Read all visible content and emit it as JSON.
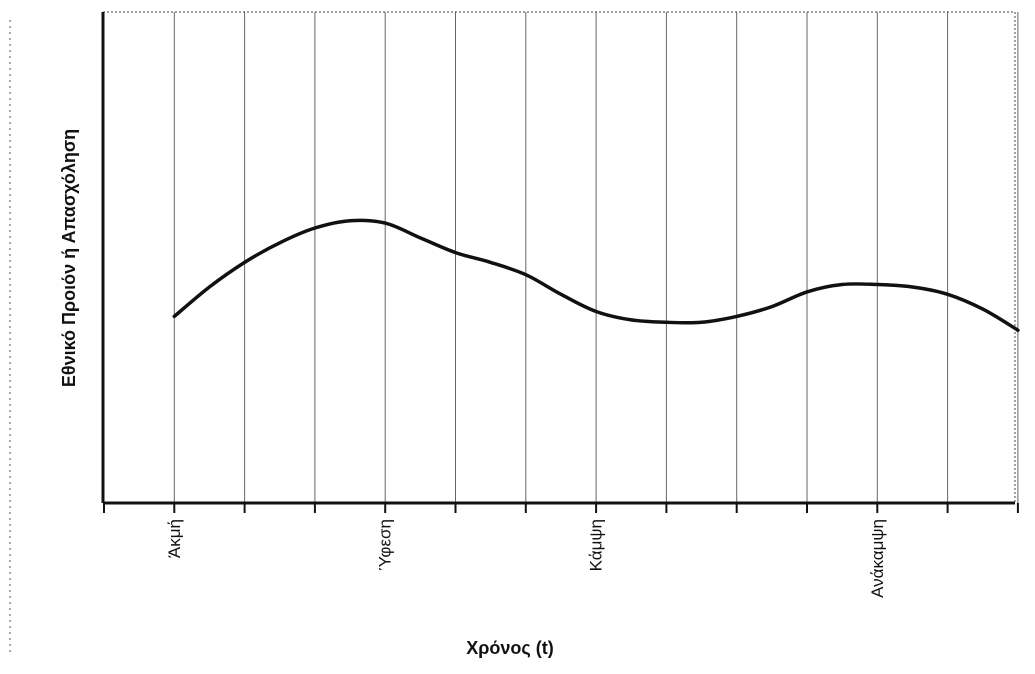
{
  "chart_data": {
    "type": "line",
    "title": "",
    "xlabel": "Χρόνος (t)",
    "ylabel": "Εθνικό Προιόν ή Απασχόληση",
    "grid": "vertical",
    "x_ticks": [
      {
        "x": 1,
        "label": "Άκμή"
      },
      {
        "x": 4,
        "label": "Ύφεση"
      },
      {
        "x": 7,
        "label": "Κάμψη"
      },
      {
        "x": 11,
        "label": "Ανάκαμψη"
      }
    ],
    "xlim": [
      0,
      13
    ],
    "ylim": [
      0,
      100
    ],
    "series": [
      {
        "color": "#111111",
        "points": [
          [
            1.0,
            38
          ],
          [
            1.5,
            44
          ],
          [
            2.0,
            49
          ],
          [
            2.5,
            53
          ],
          [
            3.0,
            56
          ],
          [
            3.5,
            57.5
          ],
          [
            4.0,
            57
          ],
          [
            4.5,
            54
          ],
          [
            5.0,
            51
          ],
          [
            5.5,
            49
          ],
          [
            6.0,
            46.5
          ],
          [
            6.5,
            42.5
          ],
          [
            7.0,
            39
          ],
          [
            7.5,
            37.3
          ],
          [
            8.0,
            36.8
          ],
          [
            8.5,
            36.8
          ],
          [
            9.0,
            38
          ],
          [
            9.5,
            40
          ],
          [
            10.0,
            43
          ],
          [
            10.5,
            44.5
          ],
          [
            11.0,
            44.5
          ],
          [
            11.5,
            44
          ],
          [
            12.0,
            42.5
          ],
          [
            12.5,
            39.5
          ],
          [
            13.0,
            35.2
          ]
        ]
      }
    ]
  }
}
